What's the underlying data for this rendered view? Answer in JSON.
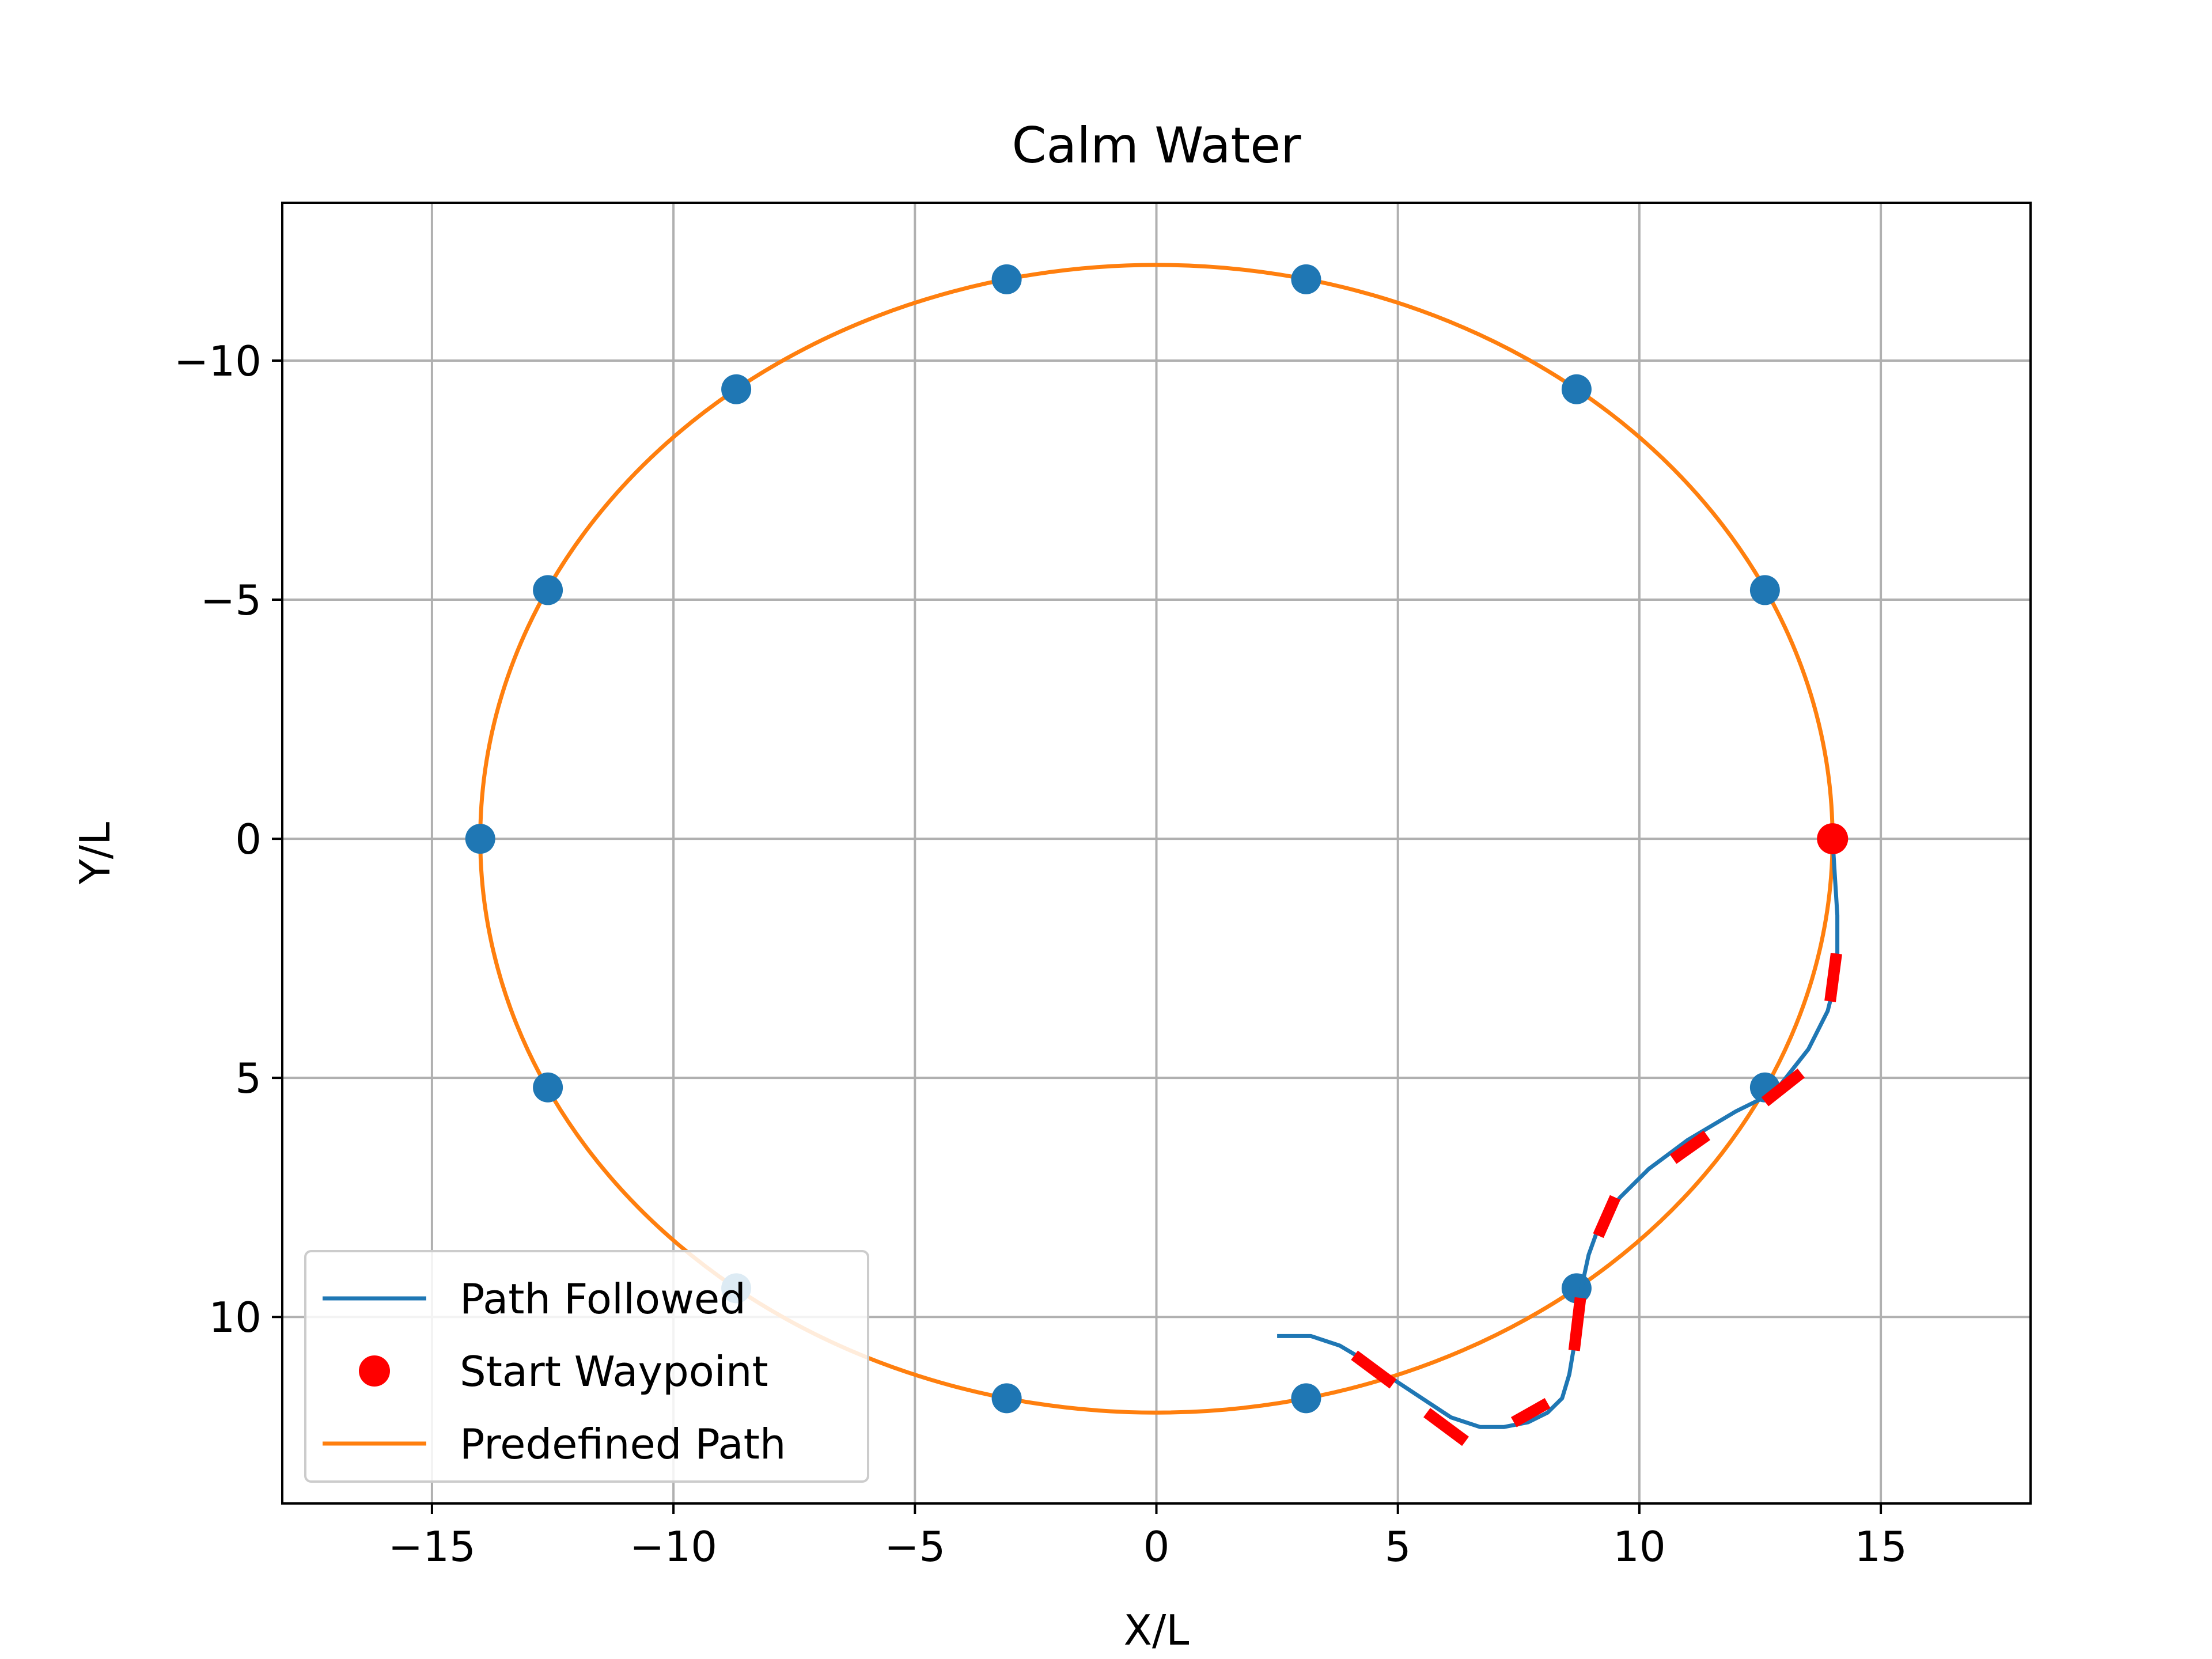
{
  "chart_data": {
    "type": "line",
    "title": "Calm Water",
    "xlabel": "X/L",
    "ylabel": "Y/L",
    "xlim": [
      -18.1,
      18.1
    ],
    "ylim": [
      13.9,
      -13.3
    ],
    "y_inverted": true,
    "grid": true,
    "legend_position": "lower left",
    "xticks": [
      -15,
      -10,
      -5,
      0,
      5,
      10,
      15
    ],
    "xtick_labels": [
      "−15",
      "−10",
      "−5",
      "0",
      "5",
      "10",
      "15"
    ],
    "yticks": [
      -10,
      -5,
      0,
      5,
      10
    ],
    "ytick_labels": [
      "−10",
      "−5",
      "0",
      "5",
      "10"
    ],
    "colors": {
      "path_followed": "#1f77b4",
      "predefined_path": "#ff7f0e",
      "waypoints": "#1f77b4",
      "start_waypoint": "#ff0000",
      "heading_markers": "#ff0000",
      "grid": "#b0b0b0"
    },
    "series": [
      {
        "name": "Path Followed",
        "kind": "line",
        "x": [
          14.0,
          14.05,
          14.1,
          14.1,
          14.05,
          13.9,
          13.5,
          12.8,
          12.0,
          11.0,
          10.2,
          9.6,
          9.2,
          8.95,
          8.8,
          8.7,
          8.65,
          8.55,
          8.4,
          8.1,
          7.7,
          7.2,
          6.7,
          6.1,
          5.5,
          4.9,
          4.3,
          3.8,
          3.2,
          2.5
        ],
        "y": [
          0.0,
          0.8,
          1.6,
          2.4,
          3.0,
          3.6,
          4.4,
          5.3,
          5.7,
          6.3,
          6.9,
          7.5,
          8.0,
          8.7,
          9.4,
          10.0,
          10.6,
          11.2,
          11.7,
          12.0,
          12.2,
          12.3,
          12.3,
          12.1,
          11.7,
          11.3,
          10.9,
          10.6,
          10.4,
          10.4
        ]
      },
      {
        "name": "Start Waypoint",
        "kind": "marker",
        "points": [
          {
            "x": 14.0,
            "y": 0.0
          }
        ]
      },
      {
        "name": "Predefined Path",
        "kind": "ellipse",
        "center": {
          "x": 0,
          "y": 0
        },
        "rx": 14.0,
        "ry": 12.0
      },
      {
        "name": "",
        "kind": "waypoints",
        "points": [
          {
            "x": 14.0,
            "y": 0.0
          },
          {
            "x": 12.6,
            "y": -5.2
          },
          {
            "x": 8.7,
            "y": -9.4
          },
          {
            "x": 3.1,
            "y": -11.7
          },
          {
            "x": -3.1,
            "y": -11.7
          },
          {
            "x": -8.7,
            "y": -9.4
          },
          {
            "x": -12.6,
            "y": -5.2
          },
          {
            "x": -14.0,
            "y": 0.0
          },
          {
            "x": -12.6,
            "y": 5.2
          },
          {
            "x": -8.7,
            "y": 9.4
          },
          {
            "x": -3.1,
            "y": 11.7
          },
          {
            "x": 3.1,
            "y": 11.7
          },
          {
            "x": 8.7,
            "y": 9.4
          },
          {
            "x": 12.6,
            "y": 5.2
          }
        ]
      },
      {
        "name": "",
        "kind": "heading-segments",
        "segments": [
          {
            "x1": 14.08,
            "y1": 2.4,
            "x2": 13.95,
            "y2": 3.4
          },
          {
            "x1": 13.35,
            "y1": 4.9,
            "x2": 12.6,
            "y2": 5.5
          },
          {
            "x1": 11.4,
            "y1": 6.2,
            "x2": 10.7,
            "y2": 6.7
          },
          {
            "x1": 9.5,
            "y1": 7.5,
            "x2": 9.15,
            "y2": 8.3
          },
          {
            "x1": 8.78,
            "y1": 9.6,
            "x2": 8.65,
            "y2": 10.7
          },
          {
            "x1": 8.1,
            "y1": 11.8,
            "x2": 7.4,
            "y2": 12.2
          },
          {
            "x1": 6.4,
            "y1": 12.6,
            "x2": 5.6,
            "y2": 12.0
          },
          {
            "x1": 4.9,
            "y1": 11.4,
            "x2": 4.1,
            "y2": 10.8
          }
        ]
      }
    ],
    "legend": [
      "Path Followed",
      "Start Waypoint",
      "Predefined Path"
    ]
  }
}
